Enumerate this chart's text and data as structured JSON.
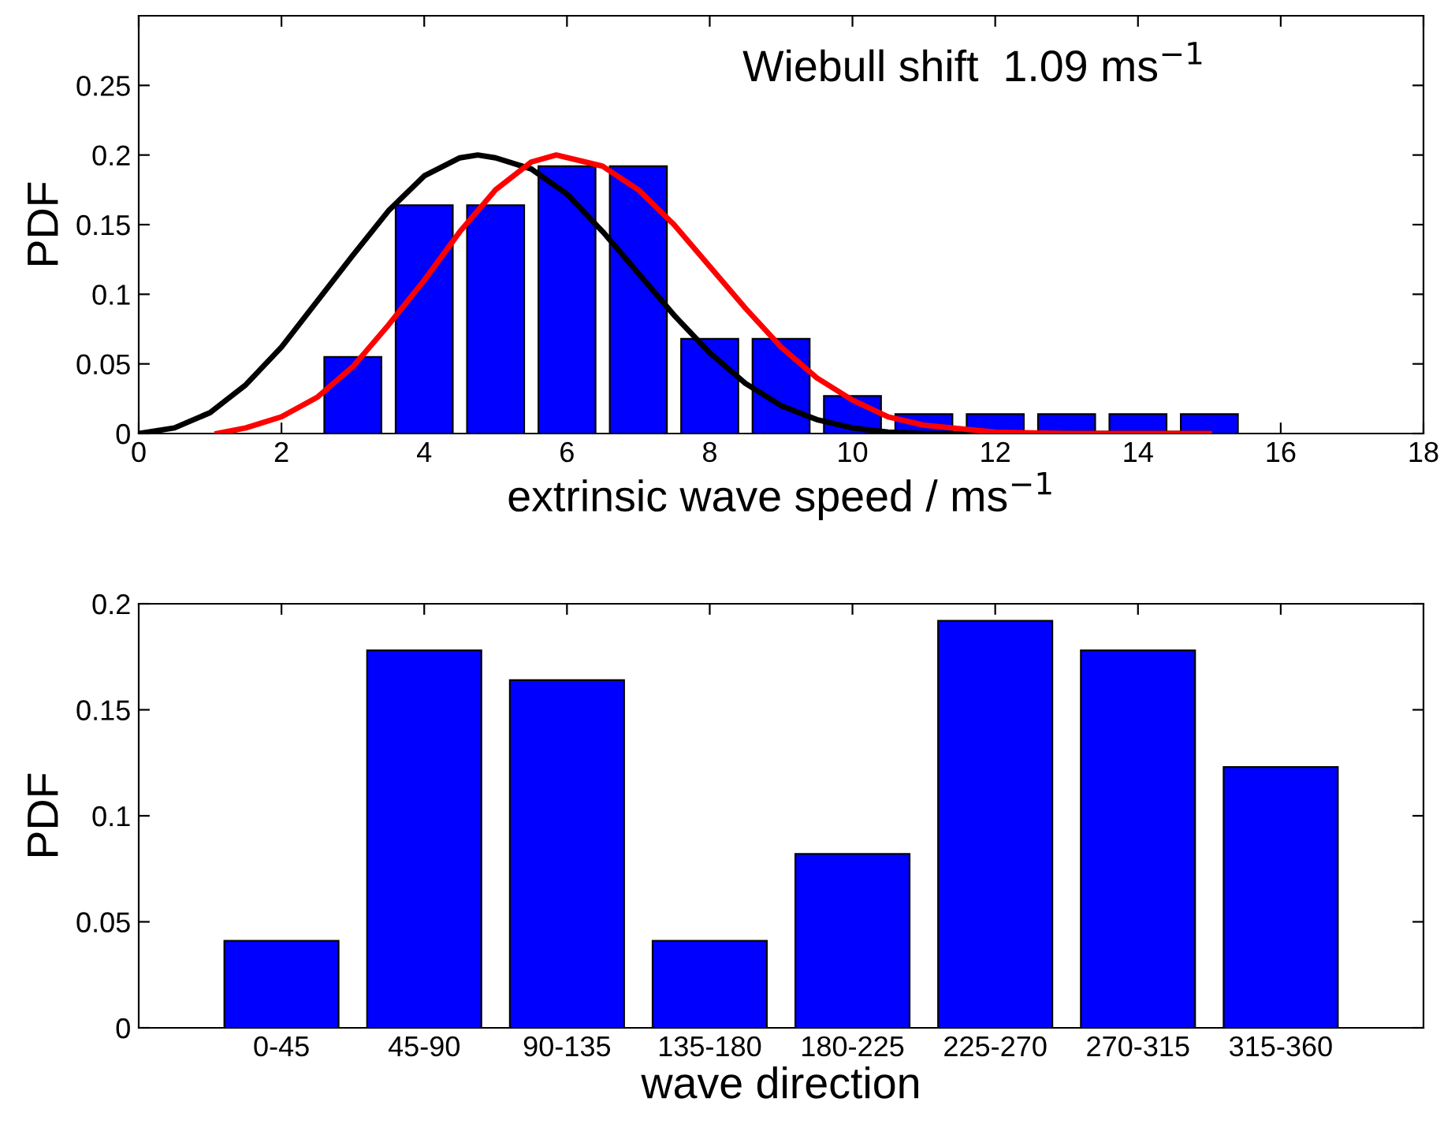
{
  "chart_data": [
    {
      "type": "bar",
      "ylabel": "PDF",
      "xlabel": "extrinsic wave speed / ms$^{−1}$",
      "annotations": [
        "Wiebull shift  1.09 ms$^{−1}$"
      ],
      "xlim": [
        0,
        18
      ],
      "xticks": [
        0,
        2,
        4,
        6,
        8,
        10,
        12,
        14,
        16,
        18
      ],
      "ylim": [
        0,
        0.3
      ],
      "yticks": [
        0,
        0.05,
        0.1,
        0.15,
        0.2,
        0.25
      ],
      "series": [
        {
          "type": "bar",
          "color": "#0000ff",
          "x": [
            3,
            4,
            5,
            6,
            7,
            8,
            9,
            10,
            11,
            12,
            13,
            14,
            15
          ],
          "values": [
            0.055,
            0.164,
            0.164,
            0.192,
            0.192,
            0.068,
            0.068,
            0.027,
            0.014,
            0.014,
            0.014,
            0.014,
            0.014
          ]
        },
        {
          "type": "line",
          "color": "#000000",
          "x": [
            0,
            0.5,
            1,
            1.5,
            2,
            2.5,
            3,
            3.5,
            4,
            4.5,
            4.75,
            5,
            5.5,
            6,
            6.5,
            7,
            7.5,
            8,
            8.5,
            9,
            9.5,
            10,
            10.5,
            11,
            12,
            13,
            14,
            15
          ],
          "values": [
            0,
            0.004,
            0.015,
            0.035,
            0.062,
            0.095,
            0.128,
            0.16,
            0.185,
            0.198,
            0.2,
            0.198,
            0.19,
            0.172,
            0.145,
            0.115,
            0.085,
            0.058,
            0.036,
            0.02,
            0.01,
            0.004,
            0.001,
            0,
            0,
            0,
            0,
            0
          ]
        },
        {
          "type": "line",
          "color": "#ff0000",
          "x": [
            1.1,
            1.5,
            2,
            2.5,
            3,
            3.5,
            4,
            4.5,
            5,
            5.5,
            5.85,
            6.5,
            7,
            7.5,
            8,
            8.5,
            9,
            9.5,
            10,
            10.5,
            11,
            12,
            13,
            14,
            15
          ],
          "values": [
            0,
            0.004,
            0.012,
            0.026,
            0.048,
            0.078,
            0.11,
            0.145,
            0.175,
            0.195,
            0.2,
            0.192,
            0.175,
            0.15,
            0.12,
            0.09,
            0.062,
            0.04,
            0.024,
            0.012,
            0.006,
            0.001,
            0,
            0,
            0
          ]
        }
      ]
    },
    {
      "type": "bar",
      "ylabel": "PDF",
      "xlabel": "wave direction",
      "categories": [
        "0-45",
        "45-90",
        "90-135",
        "135-180",
        "180-225",
        "225-270",
        "270-315",
        "315-360"
      ],
      "values": [
        0.041,
        0.178,
        0.164,
        0.041,
        0.082,
        0.192,
        0.178,
        0.123
      ],
      "color": "#0000ff",
      "ylim": [
        0,
        0.2
      ],
      "yticks": [
        0,
        0.05,
        0.1,
        0.15,
        0.2
      ]
    }
  ]
}
